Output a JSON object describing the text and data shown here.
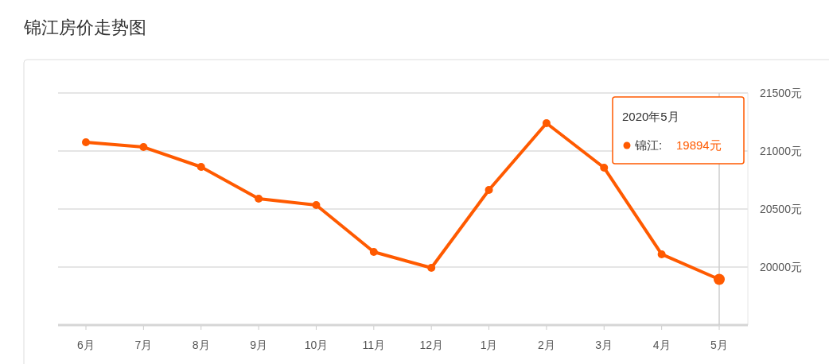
{
  "chart_data": {
    "type": "line",
    "title": "锦江房价走势图",
    "categories": [
      "6月",
      "7月",
      "8月",
      "9月",
      "10月",
      "11月",
      "12月",
      "1月",
      "2月",
      "3月",
      "4月",
      "5月"
    ],
    "series": [
      {
        "name": "锦江:",
        "color": "#ff5a00",
        "values": [
          21075,
          21034,
          20863,
          20589,
          20534,
          20130,
          19993,
          20664,
          21240,
          20856,
          20110,
          19894
        ]
      }
    ],
    "value_labels": [
      null,
      null,
      null,
      null,
      null,
      null,
      null,
      null,
      null,
      null,
      null,
      "19894元"
    ],
    "ylim": [
      19500,
      21500
    ],
    "yticks": [
      {
        "value": 20000,
        "label": "20000元"
      },
      {
        "value": 20500,
        "label": "20500元"
      },
      {
        "value": 21000,
        "label": "21000元"
      },
      {
        "value": 21500,
        "label": "21500元"
      }
    ],
    "grid": "y",
    "marker": "circle",
    "line_style": "solid",
    "legend": "top right",
    "ref_lines": [
      {
        "axis": "x",
        "value": "5月",
        "color": "#cccccc"
      }
    ],
    "annotations": [
      "2020年5月"
    ]
  }
}
